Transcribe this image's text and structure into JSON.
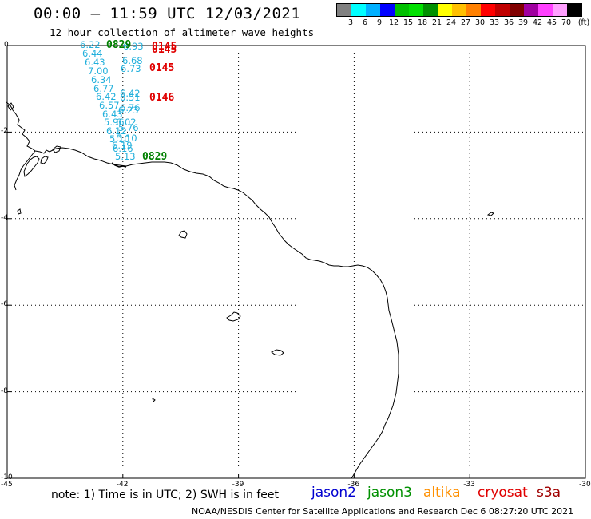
{
  "header": {
    "title": "00:00 – 11:59 UTC 12/03/2021",
    "subtitle": "12 hour collection of altimeter wave heights"
  },
  "scale": {
    "unit": "(ft)",
    "labels": [
      "3",
      "6",
      "9",
      "12",
      "15",
      "18",
      "21",
      "24",
      "27",
      "30",
      "33",
      "36",
      "39",
      "42",
      "45",
      "70"
    ],
    "colors": [
      "#808080",
      "#00ffff",
      "#00b0ff",
      "#0000ff",
      "#00c000",
      "#00e000",
      "#009000",
      "#ffff00",
      "#ffc000",
      "#ff8000",
      "#ff0000",
      "#c00000",
      "#800000",
      "#a000a0",
      "#ff40ff",
      "#ffa0ff",
      "#000000"
    ]
  },
  "axes": {
    "lat_labels": [
      "0",
      "-2",
      "-4",
      "-6",
      "-8",
      "-10"
    ],
    "lon_labels": [
      "-45",
      "-42",
      "-39",
      "-36",
      "-33",
      "-30"
    ],
    "lat_values": [
      0,
      -2,
      -4,
      -6,
      -8,
      -10
    ],
    "lon_values": [
      -45,
      -42,
      -39,
      -36,
      -33,
      -30
    ]
  },
  "observations": [
    {
      "text": "6.22",
      "color": "#22b0dc"
    },
    {
      "text": "6.44",
      "color": "#22b0dc"
    },
    {
      "text": "6.43",
      "color": "#22b0dc"
    },
    {
      "text": "7.00",
      "color": "#22b0dc"
    },
    {
      "text": "6.34",
      "color": "#22b0dc"
    },
    {
      "text": "6.77",
      "color": "#22b0dc"
    },
    {
      "text": "6.42",
      "color": "#22b0dc"
    },
    {
      "text": "6.57",
      "color": "#22b0dc"
    },
    {
      "text": "6.43",
      "color": "#22b0dc"
    },
    {
      "text": "5.96",
      "color": "#22b0dc"
    },
    {
      "text": "6.12",
      "color": "#22b0dc"
    },
    {
      "text": "5.10",
      "color": "#22b0dc"
    },
    {
      "text": "6.19",
      "color": "#22b0dc"
    },
    {
      "text": "6.16",
      "color": "#22b0dc"
    },
    {
      "text": "5.13",
      "color": "#22b0dc"
    },
    {
      "text": "6.93",
      "color": "#22b0dc"
    },
    {
      "text": "6.68",
      "color": "#22b0dc"
    },
    {
      "text": "6.73",
      "color": "#22b0dc"
    },
    {
      "text": "6.42",
      "color": "#22b0dc"
    },
    {
      "text": "6.51",
      "color": "#22b0dc"
    },
    {
      "text": "6.76",
      "color": "#22b0dc"
    },
    {
      "text": "6.23",
      "color": "#22b0dc"
    },
    {
      "text": "6.02",
      "color": "#22b0dc"
    },
    {
      "text": "5.76",
      "color": "#22b0dc"
    },
    {
      "text": "5.10",
      "color": "#22b0dc"
    }
  ],
  "pass_times": [
    {
      "text": "0829",
      "color": "#008000"
    },
    {
      "text": "0145",
      "color": "#e00000"
    },
    {
      "text": "0145",
      "color": "#e00000"
    },
    {
      "text": "0145",
      "color": "#e00000"
    },
    {
      "text": "0146",
      "color": "#e00000"
    },
    {
      "text": "0829",
      "color": "#008000"
    }
  ],
  "note": "note: 1) Time is in UTC; 2) SWH is in feet",
  "legend": [
    {
      "label": "jason2",
      "color": "#0000d0"
    },
    {
      "label": "jason3",
      "color": "#009000"
    },
    {
      "label": "altika",
      "color": "#ff9000"
    },
    {
      "label": "cryosat",
      "color": "#e00000"
    },
    {
      "label": "s3a",
      "color": "#a00000"
    }
  ],
  "footer": "NOAA/NESDIS Center for Satellite Applications and Research   Dec  6 08:27:20 UTC 2021"
}
